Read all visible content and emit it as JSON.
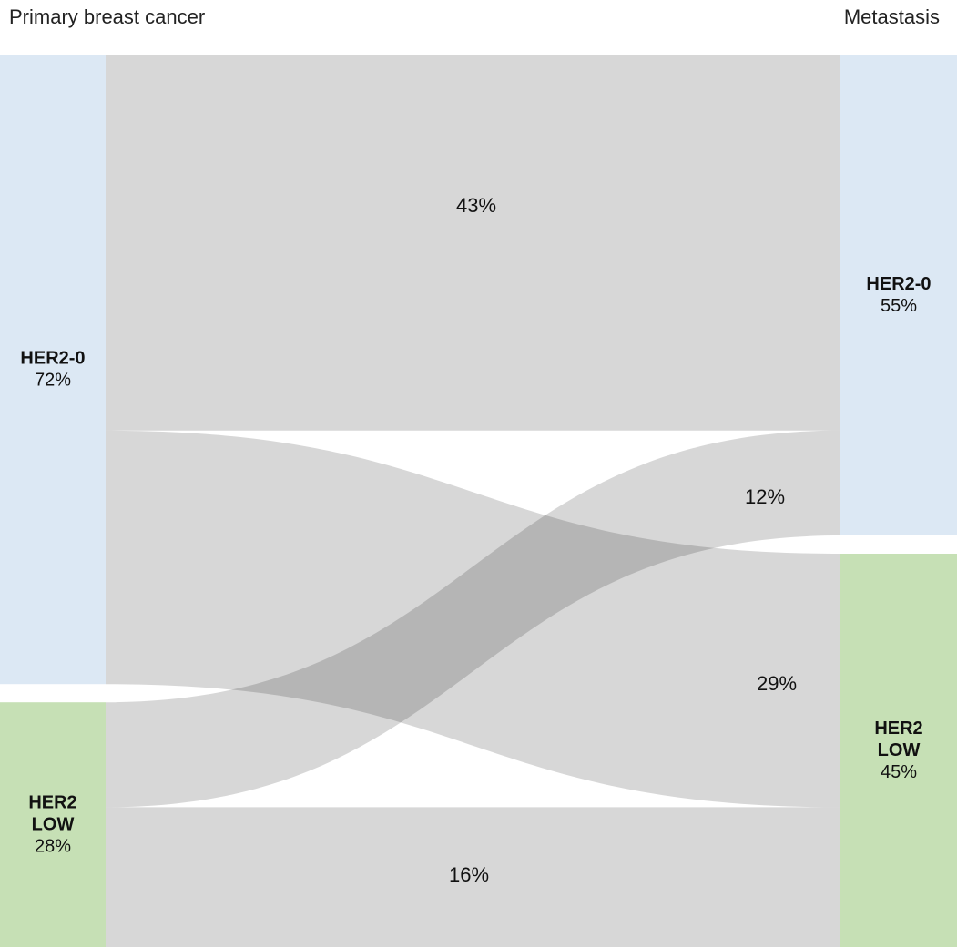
{
  "header": {
    "left_title": "Primary breast cancer",
    "right_title": "Metastasis"
  },
  "colors": {
    "her2_0": "#dce8f4",
    "her2_low": "#c6e0b5",
    "flow": "#c8c8c8",
    "flow_overlap": "#9a9a9a"
  },
  "chart_data": {
    "type": "sankey",
    "left_nodes": [
      {
        "id": "p0",
        "name_lines": [
          "HER2-0"
        ],
        "value_label": "72%",
        "value": 72,
        "color_key": "her2_0"
      },
      {
        "id": "plow",
        "name_lines": [
          "HER2",
          "LOW"
        ],
        "value_label": "28%",
        "value": 28,
        "color_key": "her2_low"
      }
    ],
    "right_nodes": [
      {
        "id": "m0",
        "name_lines": [
          "HER2-0"
        ],
        "value_label": "55%",
        "value": 55,
        "color_key": "her2_0"
      },
      {
        "id": "mlow",
        "name_lines": [
          "HER2",
          "LOW"
        ],
        "value_label": "45%",
        "value": 45,
        "color_key": "her2_low"
      }
    ],
    "flows": [
      {
        "source": "p0",
        "target": "m0",
        "value": 43,
        "label": "43%"
      },
      {
        "source": "p0",
        "target": "mlow",
        "value": 29,
        "label": "29%"
      },
      {
        "source": "plow",
        "target": "m0",
        "value": 12,
        "label": "12%"
      },
      {
        "source": "plow",
        "target": "mlow",
        "value": 16,
        "label": "16%"
      }
    ]
  }
}
